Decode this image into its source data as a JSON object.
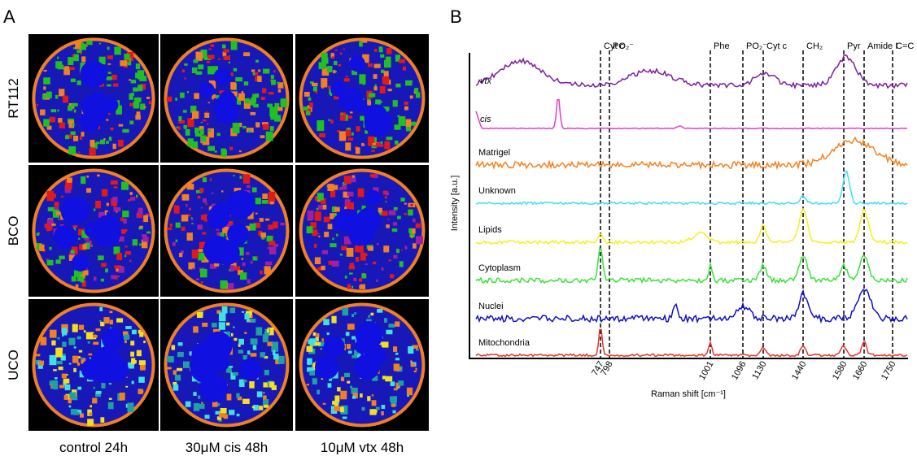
{
  "panel_a": {
    "label": "A",
    "rows": [
      "RT112",
      "BCO",
      "UCO"
    ],
    "columns": [
      "control 24h",
      "30μM cis 48h",
      "10μM vtx 48h"
    ]
  },
  "panel_b": {
    "label": "B",
    "y_axis_label": "Intensity [a.u.]",
    "x_axis_label": "Raman shift [cm⁻¹]",
    "traces": [
      {
        "name": "vtx",
        "color": "#7b1fa2"
      },
      {
        "name": "cis",
        "color": "#e040c8"
      },
      {
        "name": "Matrigel",
        "color": "#f5821f"
      },
      {
        "name": "Unknown",
        "color": "#3ee0f0"
      },
      {
        "name": "Lipids",
        "color": "#f2f21a"
      },
      {
        "name": "Cytoplasm",
        "color": "#3ce03c"
      },
      {
        "name": "Nuclei",
        "color": "#1010c8"
      },
      {
        "name": "Mitochondria",
        "color": "#e8352a"
      }
    ],
    "peaks": [
      "Cyt c",
      "PO₂⁻",
      "Phe",
      "PO₂⁻",
      "Cyt c",
      "CH₂",
      "Pyr",
      "Amide I",
      "C=C"
    ],
    "wavenumbers": [
      747,
      798,
      1001,
      1096,
      1130,
      1440,
      1580,
      1660,
      1750
    ]
  }
}
